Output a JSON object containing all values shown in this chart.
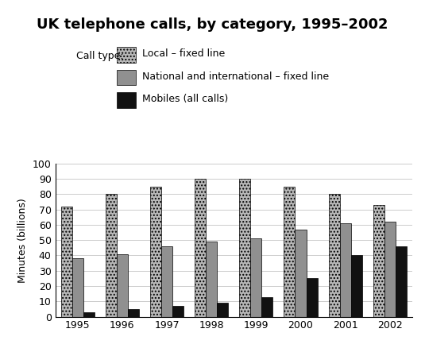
{
  "title": "UK telephone calls, by category, 1995–2002",
  "ylabel": "Minutes (billions)",
  "years": [
    1995,
    1996,
    1997,
    1998,
    1999,
    2000,
    2001,
    2002
  ],
  "local_fixed": [
    72,
    80,
    85,
    90,
    90,
    85,
    80,
    73
  ],
  "national_fixed": [
    38,
    41,
    46,
    49,
    51,
    57,
    61,
    62
  ],
  "mobiles": [
    3,
    5,
    7,
    9,
    13,
    25,
    40,
    46
  ],
  "ylim": [
    0,
    100
  ],
  "yticks": [
    0,
    10,
    20,
    30,
    40,
    50,
    60,
    70,
    80,
    90,
    100
  ],
  "legend_labels": [
    "Local – fixed line",
    "National and international – fixed line",
    "Mobiles (all calls)"
  ],
  "legend_title": "Call type:",
  "color_local": "#b8b8b8",
  "color_national": "#909090",
  "color_mobiles": "#111111",
  "hatch_local": "....",
  "hatch_national": "",
  "hatch_mobiles": "",
  "bar_width": 0.25,
  "title_fontsize": 13,
  "label_fontsize": 9,
  "tick_fontsize": 9,
  "legend_fontsize": 9,
  "background_color": "#ffffff",
  "grid_color": "#cccccc"
}
